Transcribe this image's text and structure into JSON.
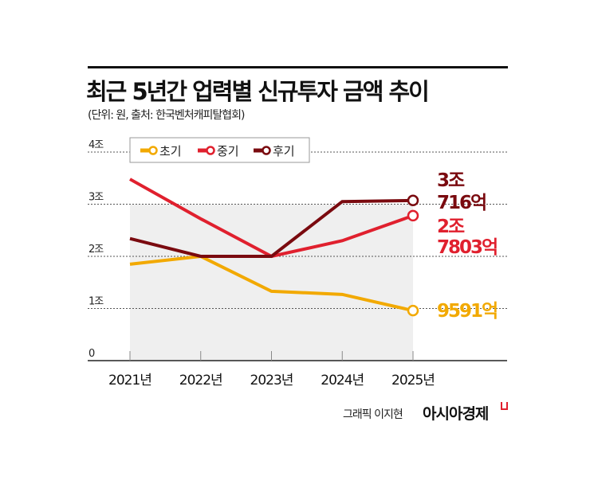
{
  "header": {
    "title": "최근 5년간 업력별 신규투자 금액 추이",
    "subtitle": "(단위: 원, 출처: 한국벤처캐피탈협회)"
  },
  "footer": {
    "credit": "그래픽 이지현",
    "brand": "아시아경제"
  },
  "chart_data": {
    "type": "line",
    "categories": [
      "2021년",
      "2022년",
      "2023년",
      "2024년",
      "2025년"
    ],
    "ylim": [
      0,
      4
    ],
    "yticks": [
      0,
      1,
      2,
      3,
      4
    ],
    "ytick_labels": [
      "0",
      "1조",
      "2조",
      "3조",
      "4조"
    ],
    "unit": "조 원",
    "grid": true,
    "legend": "top-left",
    "series": [
      {
        "name": "초기",
        "color": "#f2a900",
        "values": [
          1.85,
          2.0,
          1.33,
          1.27,
          0.9591
        ],
        "end_label": [
          "9591억"
        ]
      },
      {
        "name": "중기",
        "color": "#e0202e",
        "values": [
          3.48,
          2.72,
          2.0,
          2.3,
          2.7803
        ],
        "end_label": [
          "2조",
          "7803억"
        ]
      },
      {
        "name": "후기",
        "color": "#7a0a0f",
        "values": [
          2.34,
          2.0,
          2.0,
          3.05,
          3.0716
        ],
        "end_label": [
          "3조",
          "716억"
        ]
      }
    ]
  }
}
